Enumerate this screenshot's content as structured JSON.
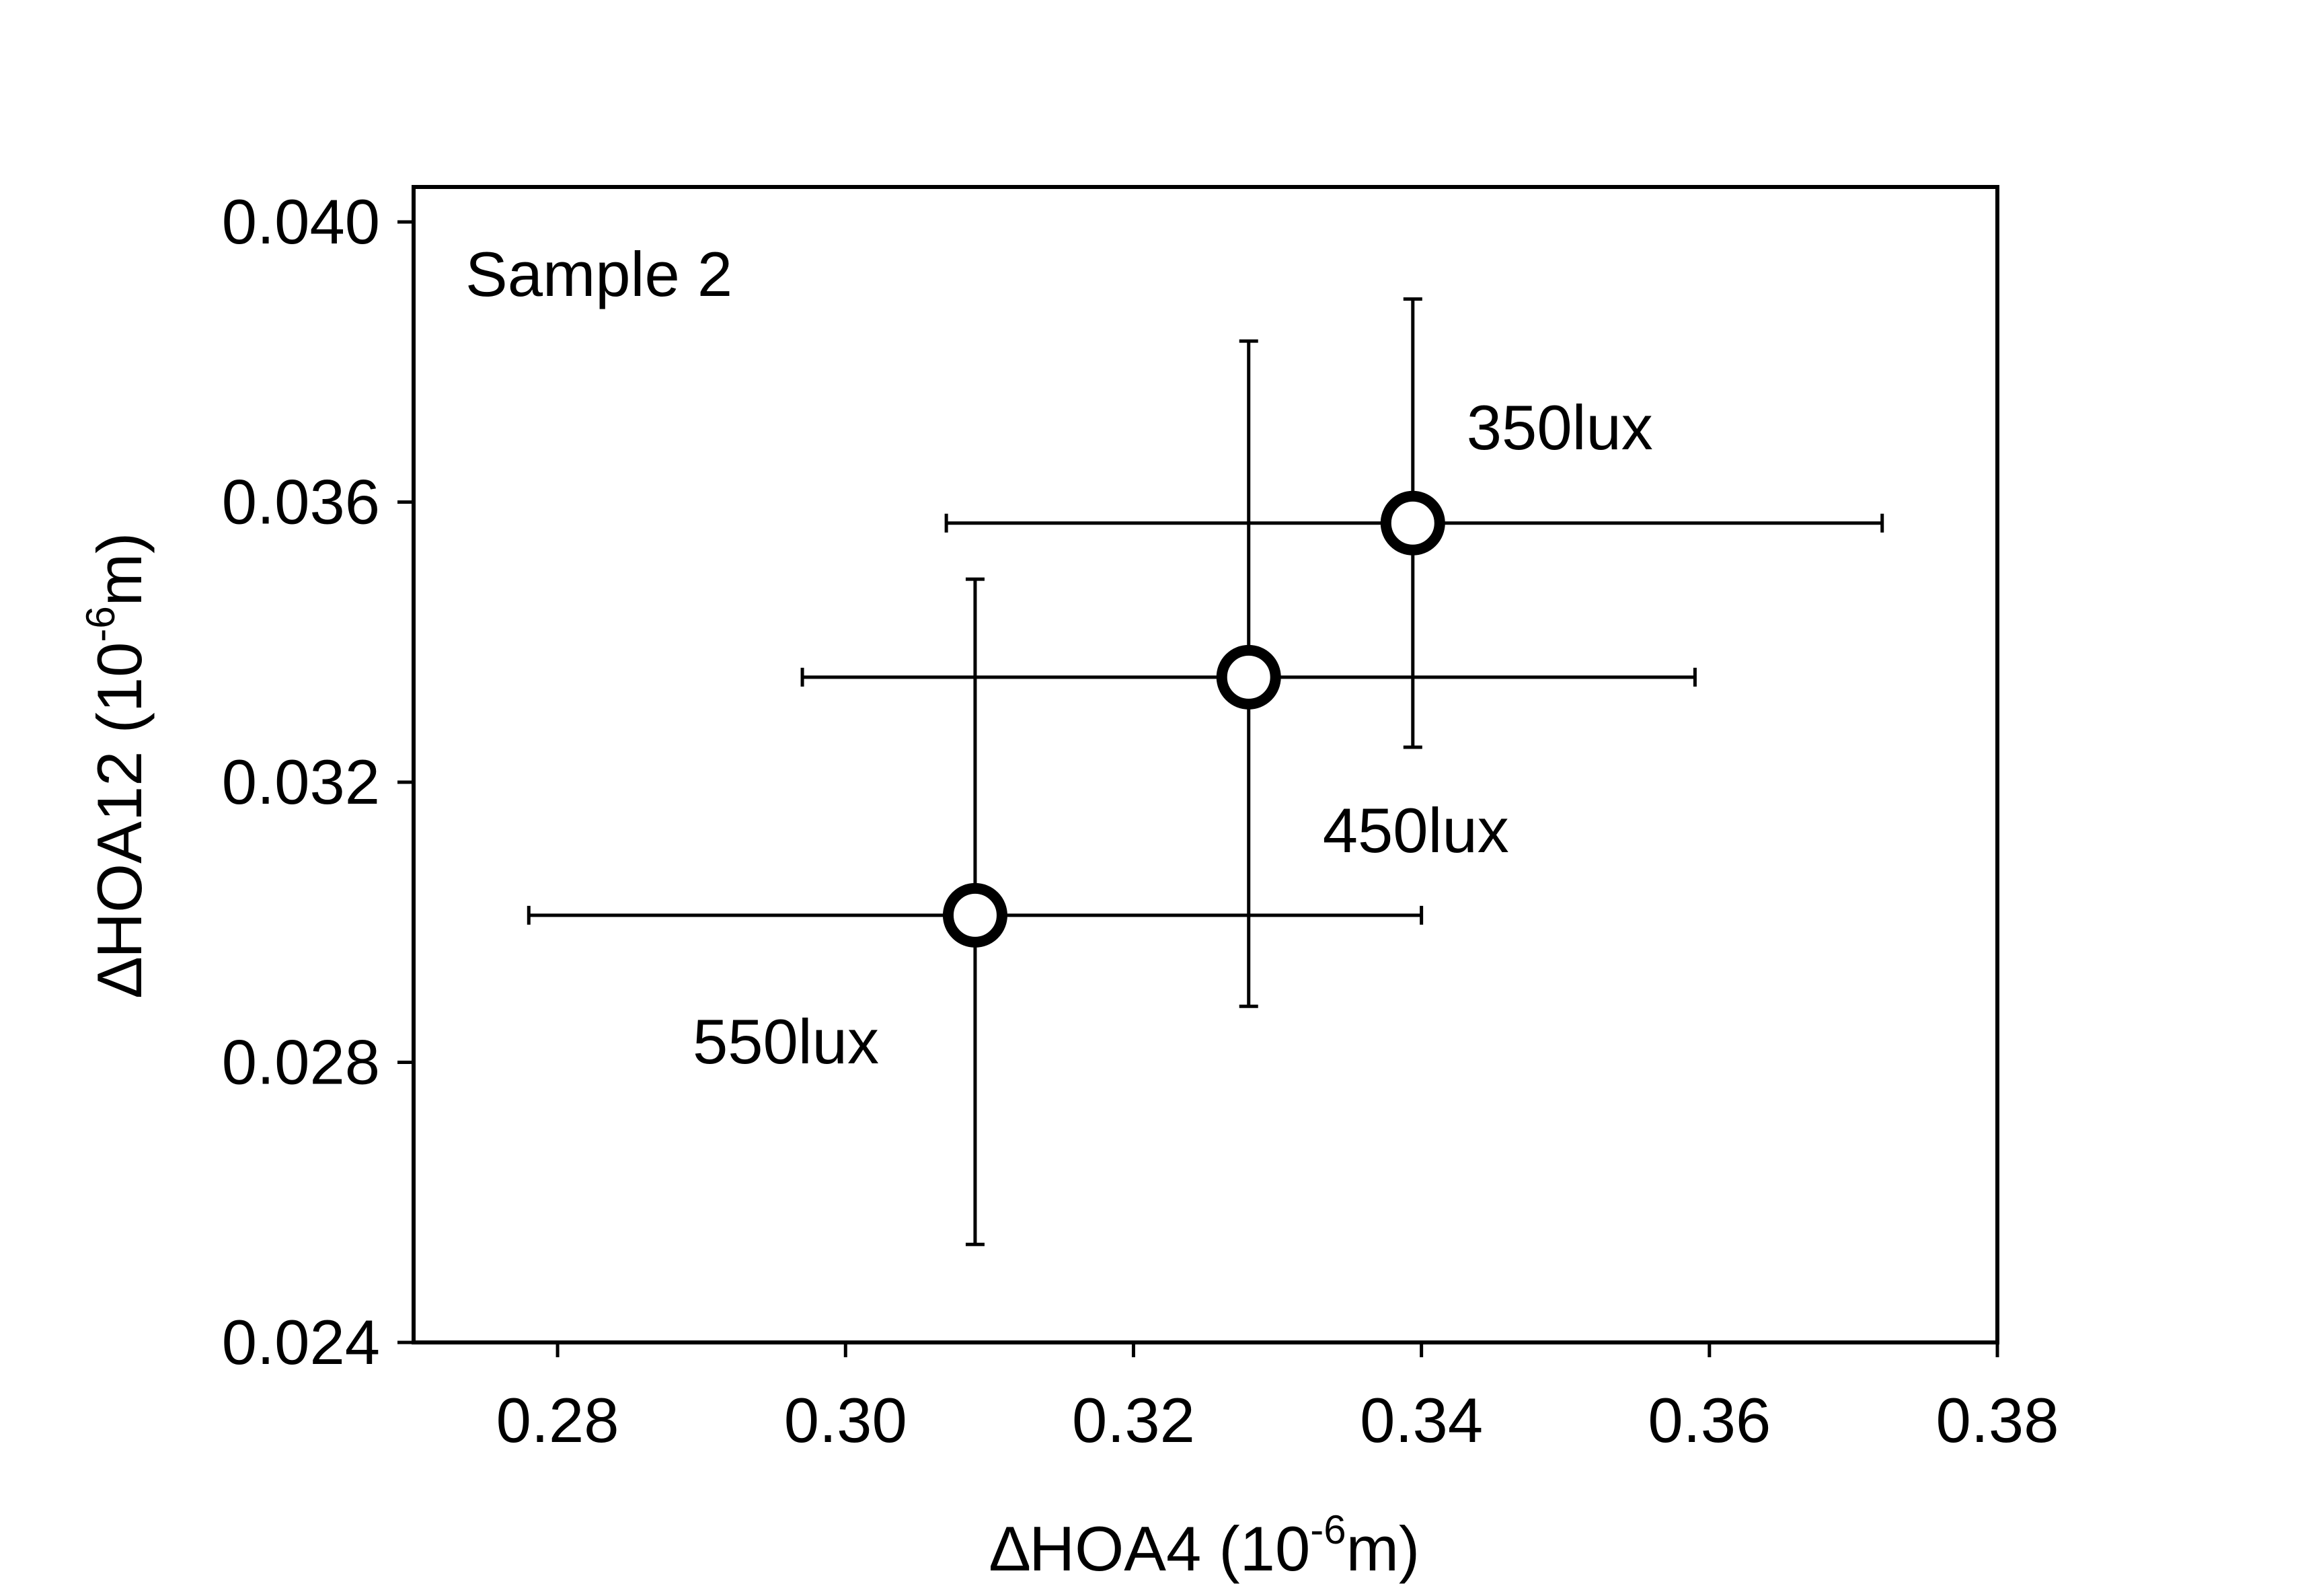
{
  "chart_data": {
    "type": "scatter",
    "title": "",
    "annotation": "Sample 2",
    "xlabel": {
      "prefix": "∆HOA4 (10",
      "sup": "-6",
      "suffix": "m)"
    },
    "ylabel": {
      "prefix": "∆HOA12 (10",
      "sup": "-6",
      "suffix": "m)"
    },
    "xlim": [
      0.27,
      0.38
    ],
    "ylim": [
      0.024,
      0.0405
    ],
    "xticks": [
      0.28,
      0.3,
      0.32,
      0.34,
      0.36,
      0.38
    ],
    "xtick_labels": [
      "0.28",
      "0.30",
      "0.32",
      "0.34",
      "0.36",
      "0.38"
    ],
    "yticks": [
      0.024,
      0.028,
      0.032,
      0.036,
      0.04
    ],
    "ytick_labels": [
      "0.024",
      "0.028",
      "0.032",
      "0.036",
      "0.040"
    ],
    "grid": false,
    "points": [
      {
        "label": "350lux",
        "x": 0.3394,
        "y": 0.0357,
        "x_err_low": 0.307,
        "x_err_high": 0.372,
        "y_err_low": 0.0325,
        "y_err_high": 0.0389
      },
      {
        "label": "450lux",
        "x": 0.328,
        "y": 0.0335,
        "x_err_low": 0.297,
        "x_err_high": 0.359,
        "y_err_low": 0.0288,
        "y_err_high": 0.0383
      },
      {
        "label": "550lux",
        "x": 0.309,
        "y": 0.0301,
        "x_err_low": 0.278,
        "x_err_high": 0.34,
        "y_err_low": 0.0254,
        "y_err_high": 0.0349
      }
    ]
  }
}
